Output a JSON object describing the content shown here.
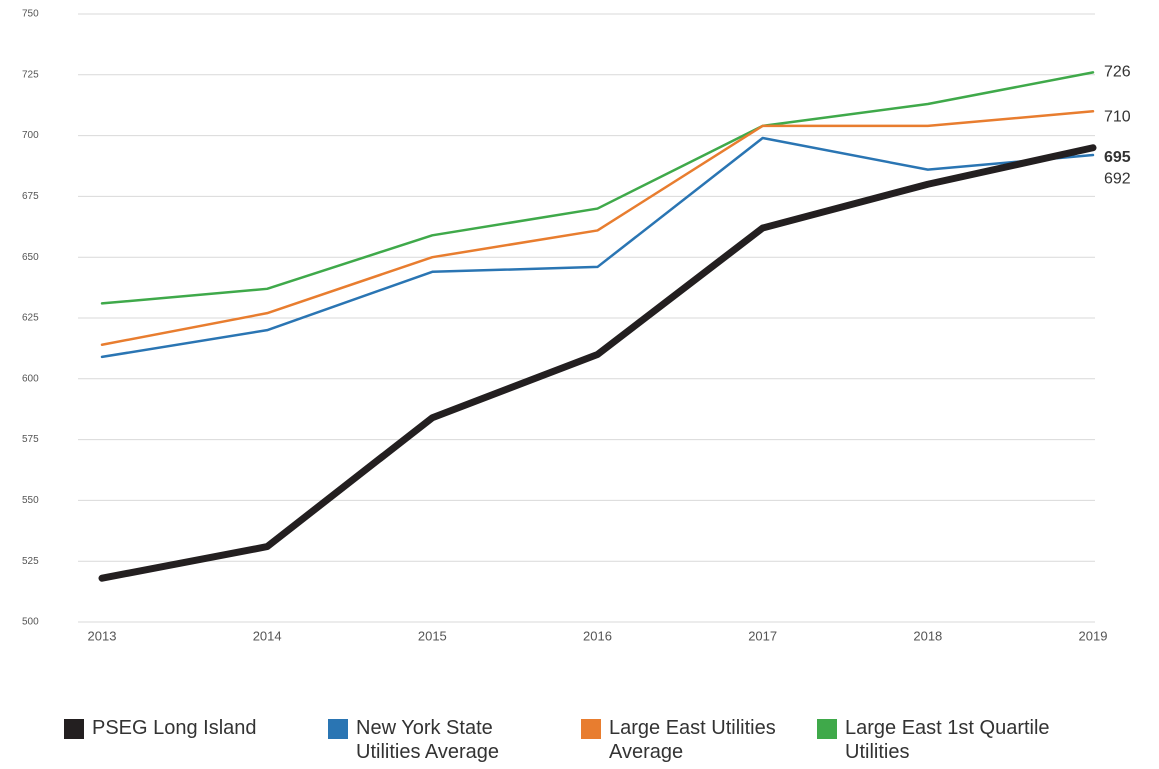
{
  "chart_data": {
    "type": "line",
    "x": [
      2013,
      2014,
      2015,
      2016,
      2017,
      2018,
      2019
    ],
    "xticks": [
      2013,
      2014,
      2015,
      2016,
      2017,
      2018,
      2019
    ],
    "xlim": [
      2013,
      2019
    ],
    "ylim": [
      500,
      750
    ],
    "yticks": [
      500,
      525,
      550,
      575,
      600,
      625,
      650,
      675,
      700,
      725,
      750
    ],
    "grid": true,
    "legend": "bottom",
    "series": [
      {
        "name": "PSEG Long Island",
        "color": "#231f20",
        "values": [
          518,
          531,
          584,
          610,
          662,
          680,
          695
        ]
      },
      {
        "name": "New York State Utilities Average",
        "color": "#2a75b3",
        "values": [
          609,
          620,
          644,
          646,
          699,
          686,
          692
        ]
      },
      {
        "name": "Large East Utilities Average",
        "color": "#e87d2f",
        "values": [
          614,
          627,
          650,
          661,
          704,
          704,
          710
        ]
      },
      {
        "name": "Large East 1st Quartile Utilities",
        "color": "#3fa94a",
        "values": [
          631,
          637,
          659,
          670,
          704,
          713,
          726
        ]
      }
    ]
  }
}
